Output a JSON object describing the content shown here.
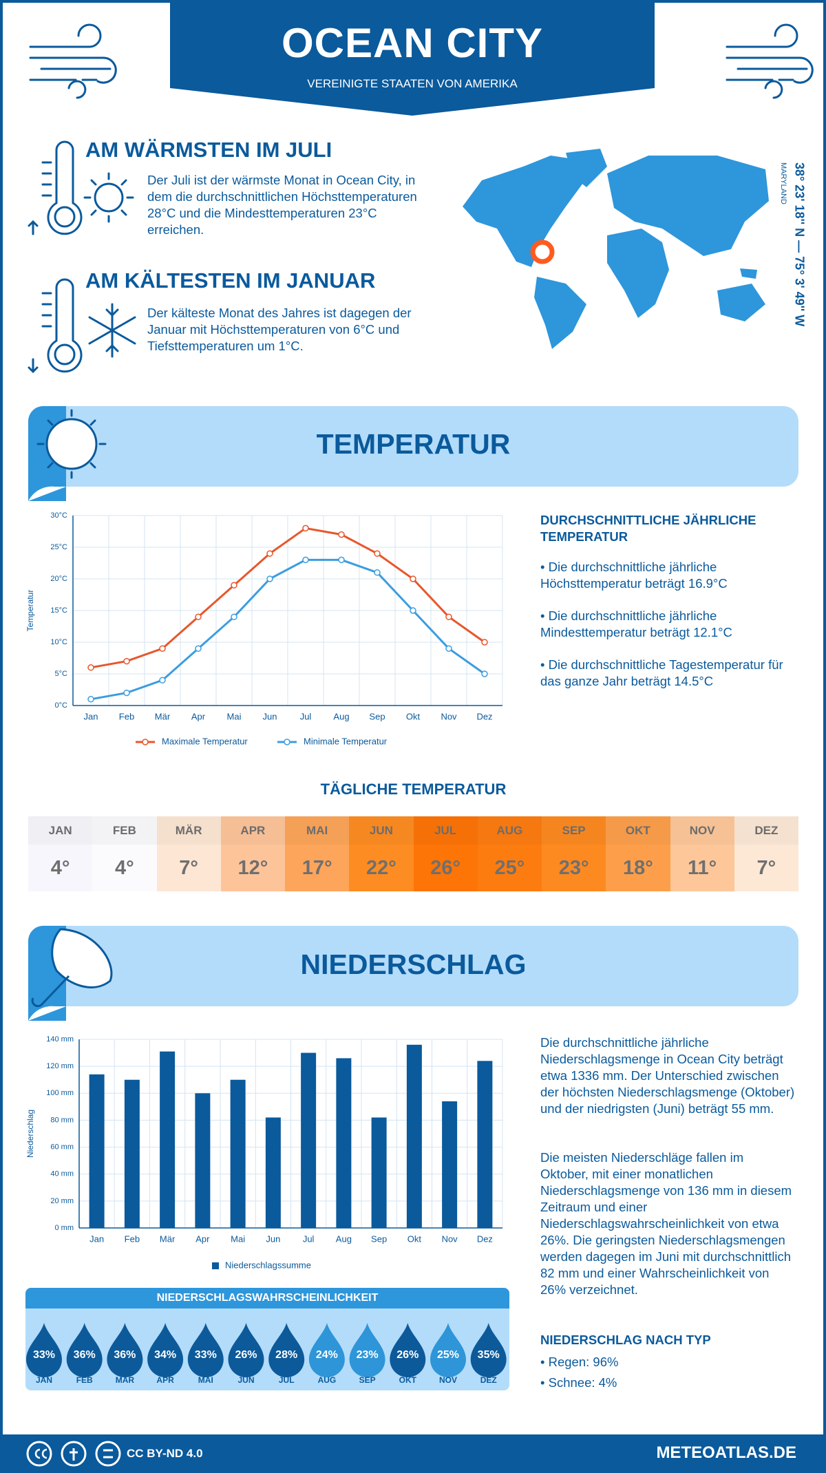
{
  "header": {
    "title": "OCEAN CITY",
    "subtitle": "VEREINIGTE STAATEN VON AMERIKA"
  },
  "location": {
    "coordinates": "38° 23' 18'' N — 75° 3' 49'' W",
    "region": "MARYLAND"
  },
  "highlights": [
    {
      "title": "AM WÄRMSTEN IM JULI",
      "text": "Der Juli ist der wärmste Monat in Ocean City, in dem die durchschnittlichen Höchsttemperaturen 28°C und die Mindesttemperaturen 23°C erreichen."
    },
    {
      "title": "AM KÄLTESTEN IM JANUAR",
      "text": "Der kälteste Monat des Jahres ist dagegen der Januar mit Höchsttemperaturen von 6°C und Tiefsttemperaturen um 1°C."
    }
  ],
  "temperature_section": {
    "title": "TEMPERATUR",
    "summary_title": "DURCHSCHNITTLICHE JÄHRLICHE TEMPERATUR",
    "bullets": [
      "• Die durchschnittliche jährliche Höchsttemperatur beträgt 16.9°C",
      "• Die durchschnittliche jährliche Mindesttemperatur beträgt 12.1°C",
      "• Die durchschnittliche Tagestemperatur für das ganze Jahr beträgt 14.5°C"
    ]
  },
  "chart_data": [
    {
      "type": "line",
      "y_label": "Temperatur",
      "categories": [
        "Jan",
        "Feb",
        "Mär",
        "Apr",
        "Mai",
        "Jun",
        "Jul",
        "Aug",
        "Sep",
        "Okt",
        "Nov",
        "Dez"
      ],
      "series": [
        {
          "name": "Maximale Temperatur",
          "color": "#e8562a",
          "values": [
            6,
            7,
            9,
            14,
            19,
            24,
            28,
            27,
            24,
            20,
            14,
            10
          ]
        },
        {
          "name": "Minimale Temperatur",
          "color": "#3b9de0",
          "values": [
            1,
            2,
            4,
            9,
            14,
            20,
            23,
            23,
            21,
            15,
            9,
            5
          ]
        }
      ],
      "ylim": [
        0,
        30
      ],
      "yticks": [
        {
          "value": 0,
          "label": "0°C"
        },
        {
          "value": 5,
          "label": "5°C"
        },
        {
          "value": 10,
          "label": "10°C"
        },
        {
          "value": 15,
          "label": "15°C"
        },
        {
          "value": 20,
          "label": "20°C"
        },
        {
          "value": 25,
          "label": "25°C"
        },
        {
          "value": 30,
          "label": "30°C"
        }
      ],
      "grid": true
    },
    {
      "type": "bar",
      "y_label": "Niederschlag",
      "categories": [
        "Jan",
        "Feb",
        "Mär",
        "Apr",
        "Mai",
        "Jun",
        "Jul",
        "Aug",
        "Sep",
        "Okt",
        "Nov",
        "Dez"
      ],
      "series": [
        {
          "name": "Niederschlagssumme",
          "color": "#0a5a9c",
          "values": [
            114,
            110,
            131,
            100,
            110,
            82,
            130,
            126,
            82,
            136,
            94,
            124
          ]
        }
      ],
      "ylim": [
        0,
        140
      ],
      "yticks": [
        {
          "value": 0,
          "label": "0 mm"
        },
        {
          "value": 20,
          "label": "20 mm"
        },
        {
          "value": 40,
          "label": "40 mm"
        },
        {
          "value": 60,
          "label": "60 mm"
        },
        {
          "value": 80,
          "label": "80 mm"
        },
        {
          "value": 100,
          "label": "100 mm"
        },
        {
          "value": 120,
          "label": "120 mm"
        },
        {
          "value": 140,
          "label": "140 mm"
        }
      ],
      "grid": true
    }
  ],
  "daily_temperature": {
    "title": "TÄGLICHE TEMPERATUR",
    "months": [
      "JAN",
      "FEB",
      "MÄR",
      "APR",
      "MAI",
      "JUN",
      "JUL",
      "AUG",
      "SEP",
      "OKT",
      "NOV",
      "DEZ"
    ],
    "values": [
      "4°",
      "4°",
      "7°",
      "12°",
      "17°",
      "22°",
      "26°",
      "25°",
      "23°",
      "18°",
      "11°",
      "7°"
    ],
    "colors": [
      "#f6f6fc",
      "#fbfbfd",
      "#fde6d3",
      "#fdc49a",
      "#fda55a",
      "#fd8c22",
      "#fd7407",
      "#fd7c10",
      "#fd8a20",
      "#fd9f4a",
      "#fdc79a",
      "#fde8d5"
    ]
  },
  "precipitation_section": {
    "title": "NIEDERSCHLAG",
    "paragraphs": [
      "Die durchschnittliche jährliche Niederschlagsmenge in Ocean City beträgt etwa 1336 mm. Der Unterschied zwischen der höchsten Niederschlagsmenge (Oktober) und der niedrigsten (Juni) beträgt 55 mm.",
      "Die meisten Niederschläge fallen im Oktober, mit einer monatlichen Niederschlagsmenge von 136 mm in diesem Zeitraum und einer Niederschlagswahrscheinlichkeit von etwa 26%. Die geringsten Niederschlagsmengen werden dagegen im Juni mit durchschnittlich 82 mm und einer Wahrscheinlichkeit von 26% verzeichnet."
    ],
    "type_title": "NIEDERSCHLAG NACH TYP",
    "types": [
      "• Regen: 96%",
      "• Schnee: 4%"
    ]
  },
  "probability": {
    "title": "NIEDERSCHLAGSWAHRSCHEINLICHKEIT",
    "months": [
      "JAN",
      "FEB",
      "MÄR",
      "APR",
      "MAI",
      "JUN",
      "JUL",
      "AUG",
      "SEP",
      "OKT",
      "NOV",
      "DEZ"
    ],
    "values": [
      "33%",
      "36%",
      "36%",
      "34%",
      "33%",
      "26%",
      "28%",
      "24%",
      "23%",
      "26%",
      "25%",
      "35%"
    ],
    "colors": [
      "#0d5a9a",
      "#0d5a9a",
      "#0d5a9a",
      "#0d5a9a",
      "#0d5a9a",
      "#0d5a9a",
      "#0d5a9a",
      "#2e95d8",
      "#2e95d8",
      "#0d5a9a",
      "#2e95d8",
      "#0d5a9a"
    ]
  },
  "footer": {
    "license": "CC BY-ND 4.0",
    "site": "METEOATLAS.DE"
  }
}
